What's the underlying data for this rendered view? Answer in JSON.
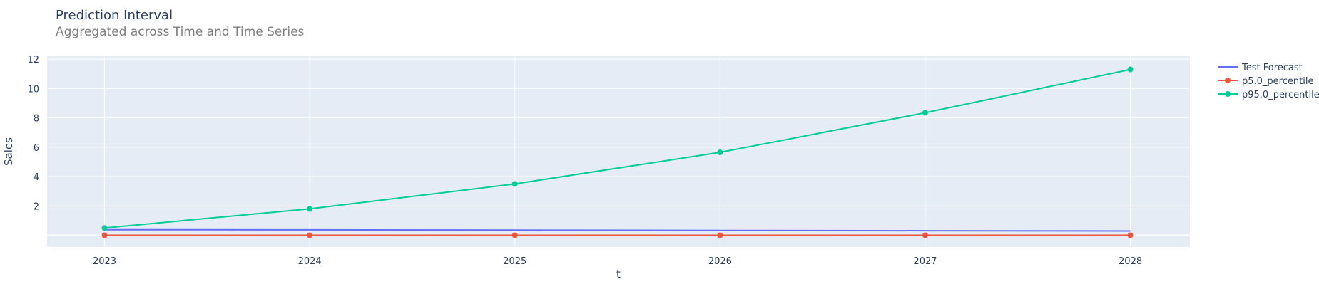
{
  "chart_data": {
    "type": "line",
    "title": "Prediction Interval",
    "subtitle": "Aggregated across Time and Time Series",
    "xlabel": "t",
    "ylabel": "Sales",
    "x": [
      2023,
      2024,
      2025,
      2026,
      2027,
      2028
    ],
    "xlim": [
      2022.72,
      2028.29
    ],
    "ylim": [
      -0.8,
      12.2
    ],
    "yticks": [
      2,
      4,
      6,
      8,
      10,
      12
    ],
    "grid": true,
    "legend_position": "right",
    "series": [
      {
        "name": "Test Forecast",
        "color": "#636efa",
        "markers": false,
        "values": [
          0.38,
          0.37,
          0.35,
          0.33,
          0.31,
          0.29
        ]
      },
      {
        "name": "p5.0_percentile",
        "color": "#ef553b",
        "markers": true,
        "values": [
          0.0,
          0.0,
          0.0,
          0.0,
          0.0,
          0.0
        ]
      },
      {
        "name": "p95.0_percentile",
        "color": "#00cc96",
        "markers": true,
        "values": [
          0.5,
          1.8,
          3.5,
          5.65,
          8.35,
          11.3
        ]
      }
    ]
  }
}
